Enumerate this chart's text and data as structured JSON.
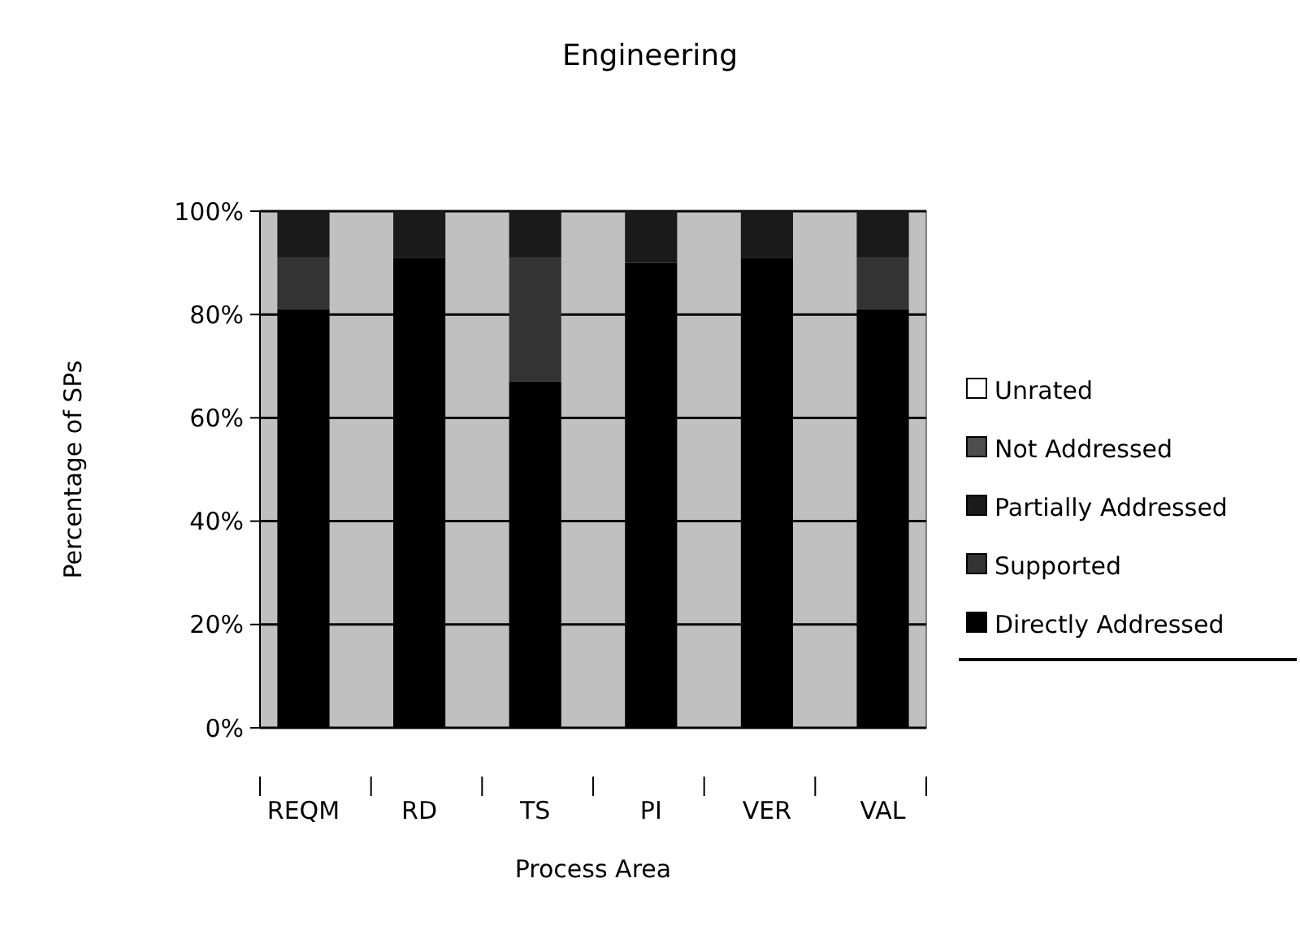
{
  "chart_data": {
    "type": "bar",
    "stacked": true,
    "title": "Engineering",
    "xlabel": "Process Area",
    "ylabel": "Percentage of SPs",
    "categories": [
      "REQM",
      "RD",
      "TS",
      "PI",
      "VER",
      "VAL"
    ],
    "series": [
      {
        "name": "Directly Addressed",
        "color": "#000000",
        "values": [
          81,
          91,
          67,
          90,
          91,
          81
        ]
      },
      {
        "name": "Supported",
        "color": "#333333",
        "values": [
          10,
          0,
          24,
          0,
          0,
          10
        ]
      },
      {
        "name": "Partially Addressed",
        "color": "#1a1a1a",
        "values": [
          9,
          9,
          9,
          10,
          9,
          9
        ]
      },
      {
        "name": "Not Addressed",
        "color": "#4d4d4d",
        "values": [
          0,
          0,
          0,
          0,
          0,
          0
        ]
      },
      {
        "name": "Unrated",
        "color": "#ffffff",
        "values": [
          0,
          0,
          0,
          0,
          0,
          0
        ]
      }
    ],
    "ylim": [
      0,
      100
    ],
    "yticks": [
      {
        "value": 0,
        "label": "0%"
      },
      {
        "value": 20,
        "label": "20%"
      },
      {
        "value": 40,
        "label": "40%"
      },
      {
        "value": 60,
        "label": "60%"
      },
      {
        "value": 80,
        "label": "80%"
      },
      {
        "value": 100,
        "label": "100%"
      }
    ],
    "grid": "y",
    "legend": "right"
  }
}
